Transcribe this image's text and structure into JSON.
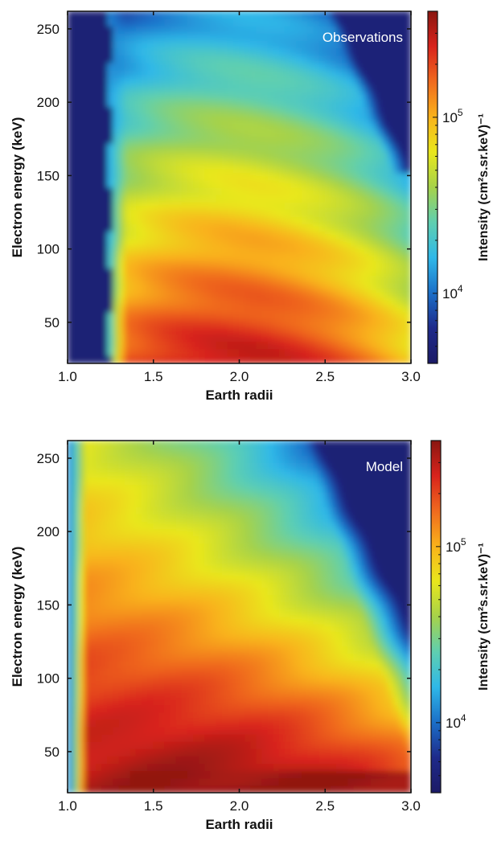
{
  "colors": {
    "colormap": [
      "#1c1a66",
      "#1e2a8a",
      "#1b6fc8",
      "#2fb8e8",
      "#5fcfb0",
      "#a6d24a",
      "#e9e71c",
      "#f9b21b",
      "#f06a1e",
      "#d8231c",
      "#8a1610"
    ],
    "background": "#ffffff",
    "frame": "#111111"
  },
  "chart_data": [
    {
      "type": "heatmap",
      "title": "Observations",
      "xlabel": "Earth radii",
      "ylabel": "Electron energy (keV)",
      "xlim": [
        1.0,
        3.0
      ],
      "ylim": [
        22,
        262
      ],
      "xticks": [
        {
          "value": 1.0,
          "label": "1.0"
        },
        {
          "value": 1.5,
          "label": "1.5"
        },
        {
          "value": 2.0,
          "label": "2.0"
        },
        {
          "value": 2.5,
          "label": "2.5"
        },
        {
          "value": 3.0,
          "label": "3.0"
        }
      ],
      "yticks": [
        {
          "value": 50,
          "label": "50"
        },
        {
          "value": 100,
          "label": "100"
        },
        {
          "value": 150,
          "label": "150"
        },
        {
          "value": 200,
          "label": "200"
        },
        {
          "value": 250,
          "label": "250"
        }
      ],
      "colorbar": {
        "label": "Intensity (cm²s.sr.keV)⁻¹",
        "scale": "log",
        "range": [
          4000,
          400000
        ],
        "ticks": [
          {
            "value": 10000,
            "base": "10",
            "exp": "4"
          },
          {
            "value": 100000,
            "base": "10",
            "exp": "5"
          }
        ]
      },
      "features": {
        "inner_edge_earth_radii": 1.25,
        "peak_energy_keV": 40,
        "peak_L_earth_radii": 2.0,
        "high_energy_cutoff_L_earth_radii": 2.6,
        "grid": false
      }
    },
    {
      "type": "heatmap",
      "title": "Model",
      "xlabel": "Earth radii",
      "ylabel": "Electron energy (keV)",
      "xlim": [
        1.0,
        3.0
      ],
      "ylim": [
        22,
        262
      ],
      "xticks": [
        {
          "value": 1.0,
          "label": "1.0"
        },
        {
          "value": 1.5,
          "label": "1.5"
        },
        {
          "value": 2.0,
          "label": "2.0"
        },
        {
          "value": 2.5,
          "label": "2.5"
        },
        {
          "value": 3.0,
          "label": "3.0"
        }
      ],
      "yticks": [
        {
          "value": 50,
          "label": "50"
        },
        {
          "value": 100,
          "label": "100"
        },
        {
          "value": 150,
          "label": "150"
        },
        {
          "value": 200,
          "label": "200"
        },
        {
          "value": 250,
          "label": "250"
        }
      ],
      "colorbar": {
        "label": "Intensity (cm²s.sr.keV)⁻¹",
        "scale": "log",
        "range": [
          4000,
          400000
        ],
        "ticks": [
          {
            "value": 10000,
            "base": "10",
            "exp": "4"
          },
          {
            "value": 100000,
            "base": "10",
            "exp": "5"
          }
        ]
      },
      "features": {
        "inner_edge_earth_radii": 1.05,
        "peak_energy_keV": 30,
        "peak_L_earth_radii": 1.8,
        "high_energy_cutoff_L_earth_radii": 2.6,
        "grid": false
      }
    }
  ]
}
